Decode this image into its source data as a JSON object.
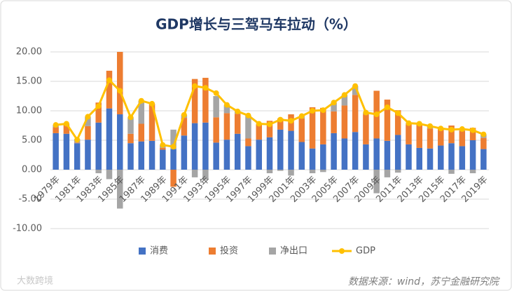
{
  "chart_data": {
    "type": "bar",
    "title": "GDP增长与三驾马车拉动（%）",
    "categories": [
      "1979年",
      null,
      "1981年",
      null,
      "1983年",
      null,
      "1985年",
      null,
      "1987年",
      null,
      "1989年",
      null,
      "1991年",
      null,
      "1993年",
      null,
      "1995年",
      null,
      "1997年",
      null,
      "1999年",
      null,
      "2001年",
      null,
      "2003年",
      null,
      "2005年",
      null,
      "2007年",
      null,
      "2009年",
      null,
      "2011年",
      null,
      "2013年",
      null,
      "2015年",
      null,
      "2017年",
      null,
      "2019年"
    ],
    "series": [
      {
        "name": "消费",
        "color": "#4472c4",
        "values": [
          6.2,
          6.1,
          4.5,
          5.1,
          8.0,
          10.4,
          9.4,
          4.5,
          4.8,
          4.9,
          3.4,
          3.5,
          5.8,
          7.9,
          8.0,
          4.6,
          5.1,
          6.1,
          4.0,
          5.1,
          5.5,
          6.8,
          6.6,
          4.7,
          3.6,
          4.3,
          6.2,
          5.3,
          6.4,
          4.3,
          5.3,
          4.9,
          5.9,
          4.3,
          3.7,
          3.6,
          4.1,
          4.5,
          4.0,
          5.0,
          3.5
        ]
      },
      {
        "name": "投资",
        "color": "#ed7d31",
        "values": [
          1.0,
          1.5,
          0.1,
          2.3,
          3.4,
          6.4,
          10.6,
          1.6,
          3.0,
          6.3,
          0.3,
          -2.9,
          3.0,
          7.5,
          7.6,
          4.3,
          4.5,
          3.4,
          1.3,
          2.6,
          2.8,
          1.9,
          2.8,
          4.0,
          7.0,
          6.2,
          3.7,
          5.6,
          6.3,
          5.1,
          8.1,
          7.0,
          4.2,
          3.4,
          4.1,
          3.4,
          2.9,
          3.0,
          2.6,
          2.1,
          1.9
        ]
      },
      {
        "name": "净出口",
        "color": "#a5a5a5",
        "values": [
          0.4,
          0.2,
          0.6,
          1.6,
          -0.6,
          -1.6,
          -6.6,
          2.8,
          3.9,
          0.0,
          0.5,
          3.3,
          0.5,
          -1.3,
          -1.7,
          3.6,
          1.4,
          0.4,
          3.9,
          0.1,
          -0.6,
          -0.2,
          -1.0,
          0.4,
          -0.6,
          -0.4,
          1.5,
          1.8,
          1.5,
          0.3,
          -4.0,
          -1.3,
          -0.5,
          0.2,
          0.0,
          0.4,
          0.0,
          -0.7,
          0.3,
          -0.6,
          0.6
        ]
      },
      {
        "name": "GDP",
        "color": "#ffc000",
        "type": "line",
        "values": [
          7.6,
          7.8,
          5.1,
          9.0,
          10.8,
          15.2,
          13.4,
          8.9,
          11.7,
          11.2,
          4.2,
          3.9,
          9.3,
          14.2,
          13.9,
          13.0,
          11.0,
          9.9,
          9.2,
          7.8,
          7.7,
          8.5,
          8.3,
          9.1,
          10.0,
          10.1,
          11.4,
          12.7,
          14.2,
          9.7,
          9.4,
          10.6,
          9.6,
          7.9,
          7.8,
          7.4,
          7.0,
          6.8,
          6.9,
          6.7,
          6.0
        ]
      }
    ],
    "ylim": [
      -10,
      20
    ],
    "yticks": [
      {
        "value": -10,
        "label": "-10.00"
      },
      {
        "value": -5,
        "label": "-5.00"
      },
      {
        "value": 0,
        "label": "0.00"
      },
      {
        "value": 5,
        "label": "5.00"
      },
      {
        "value": 10,
        "label": "10.00"
      },
      {
        "value": 15,
        "label": "15.00"
      },
      {
        "value": 20,
        "label": "20.00"
      }
    ],
    "grid": true,
    "legend": "bottom",
    "source": "数据来源：wind，苏宁金融研究院",
    "watermark": "大数跨境"
  }
}
